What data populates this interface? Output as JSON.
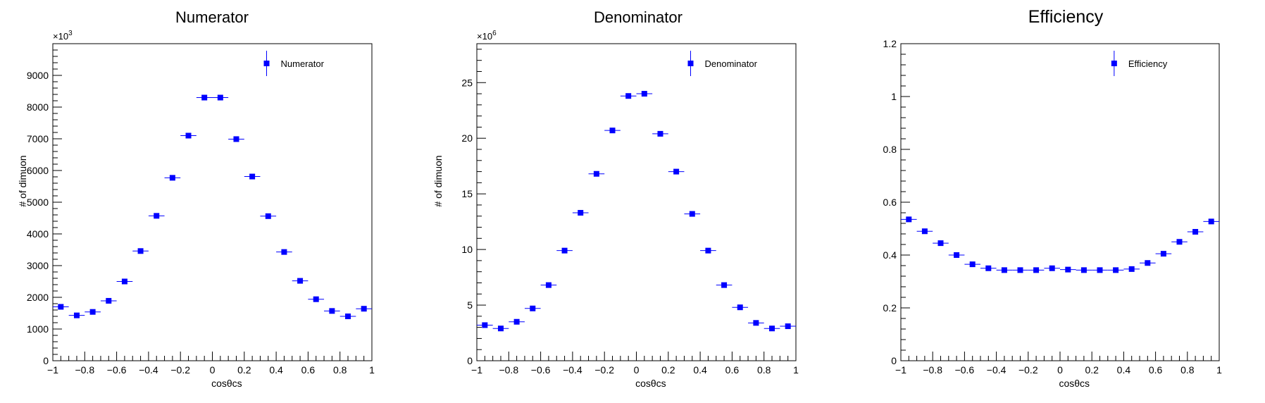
{
  "chart_data": [
    {
      "type": "scatter",
      "title": "Numerator",
      "xlabel": "cosθcs",
      "ylabel": "# of dimuon",
      "ylabel_visible": "# of dimuon",
      "y_exponent": "×10",
      "y_exponent_power": "3",
      "xlim": [
        -1,
        1
      ],
      "ylim": [
        0,
        10000
      ],
      "xticks": [
        -1,
        -0.8,
        -0.6,
        -0.4,
        -0.2,
        0,
        0.2,
        0.4,
        0.6,
        0.8,
        1
      ],
      "xtick_labels": [
        "−1",
        "−0.8",
        "−0.6",
        "−0.4",
        "−0.2",
        "0",
        "0.2",
        "0.4",
        "0.6",
        "0.8",
        "1"
      ],
      "yticks": [
        0,
        1000,
        2000,
        3000,
        4000,
        5000,
        6000,
        7000,
        8000,
        9000
      ],
      "ytick_labels": [
        "0",
        "1000",
        "2000",
        "3000",
        "4000",
        "5000",
        "6000",
        "7000",
        "8000",
        "9000"
      ],
      "legend": {
        "label": "Numerator",
        "placement": "top-right"
      },
      "color": "#0000ff",
      "x": [
        -0.95,
        -0.85,
        -0.75,
        -0.65,
        -0.55,
        -0.45,
        -0.35,
        -0.25,
        -0.15,
        -0.05,
        0.05,
        0.15,
        0.25,
        0.35,
        0.45,
        0.55,
        0.65,
        0.75,
        0.85,
        0.95
      ],
      "values": [
        1700,
        1430,
        1540,
        1890,
        2500,
        3460,
        4570,
        5770,
        7100,
        8300,
        8300,
        6990,
        5810,
        4560,
        3430,
        2520,
        1940,
        1570,
        1400,
        1640
      ]
    },
    {
      "type": "scatter",
      "title": "Denominator",
      "xlabel": "cosθcs",
      "ylabel": "# of dimuon",
      "y_exponent": "×10",
      "y_exponent_power": "6",
      "xlim": [
        -1,
        1
      ],
      "ylim": [
        0,
        28.5
      ],
      "xticks": [
        -1,
        -0.8,
        -0.6,
        -0.4,
        -0.2,
        0,
        0.2,
        0.4,
        0.6,
        0.8,
        1
      ],
      "xtick_labels": [
        "−1",
        "−0.8",
        "−0.6",
        "−0.4",
        "−0.2",
        "0",
        "0.2",
        "0.4",
        "0.6",
        "0.8",
        "1"
      ],
      "yticks": [
        0,
        5,
        10,
        15,
        20,
        25
      ],
      "ytick_labels": [
        "0",
        "5",
        "10",
        "15",
        "20",
        "25"
      ],
      "legend": {
        "label": "Denominator",
        "placement": "top-right"
      },
      "color": "#0000ff",
      "x": [
        -0.95,
        -0.85,
        -0.75,
        -0.65,
        -0.55,
        -0.45,
        -0.35,
        -0.25,
        -0.15,
        -0.05,
        0.05,
        0.15,
        0.25,
        0.35,
        0.45,
        0.55,
        0.65,
        0.75,
        0.85,
        0.95
      ],
      "values": [
        3.2,
        2.9,
        3.5,
        4.7,
        6.8,
        9.9,
        13.3,
        16.8,
        20.7,
        23.8,
        24.0,
        20.4,
        17.0,
        13.2,
        9.9,
        6.8,
        4.8,
        3.4,
        2.9,
        3.1
      ]
    },
    {
      "type": "scatter",
      "title": "Efficiency",
      "xlabel": "cosθcs",
      "ylabel": "",
      "xlim": [
        -1,
        1
      ],
      "ylim": [
        0,
        1.2
      ],
      "xticks": [
        -1,
        -0.8,
        -0.6,
        -0.4,
        -0.2,
        0,
        0.2,
        0.4,
        0.6,
        0.8,
        1
      ],
      "xtick_labels": [
        "−1",
        "−0.8",
        "−0.6",
        "−0.4",
        "−0.2",
        "0",
        "0.2",
        "0.4",
        "0.6",
        "0.8",
        "1"
      ],
      "yticks": [
        0,
        0.2,
        0.4,
        0.6,
        0.8,
        1,
        1.2
      ],
      "ytick_labels": [
        "0",
        "0.2",
        "0.4",
        "0.6",
        "0.8",
        "1",
        "1.2"
      ],
      "legend": {
        "label": "Efficiency",
        "placement": "top-right"
      },
      "color": "#0000ff",
      "x": [
        -0.95,
        -0.85,
        -0.75,
        -0.65,
        -0.55,
        -0.45,
        -0.35,
        -0.25,
        -0.15,
        -0.05,
        0.05,
        0.15,
        0.25,
        0.35,
        0.45,
        0.55,
        0.65,
        0.75,
        0.85,
        0.95
      ],
      "values": [
        0.535,
        0.49,
        0.445,
        0.4,
        0.365,
        0.35,
        0.343,
        0.343,
        0.343,
        0.35,
        0.345,
        0.343,
        0.343,
        0.343,
        0.347,
        0.37,
        0.405,
        0.45,
        0.488,
        0.527
      ]
    }
  ]
}
